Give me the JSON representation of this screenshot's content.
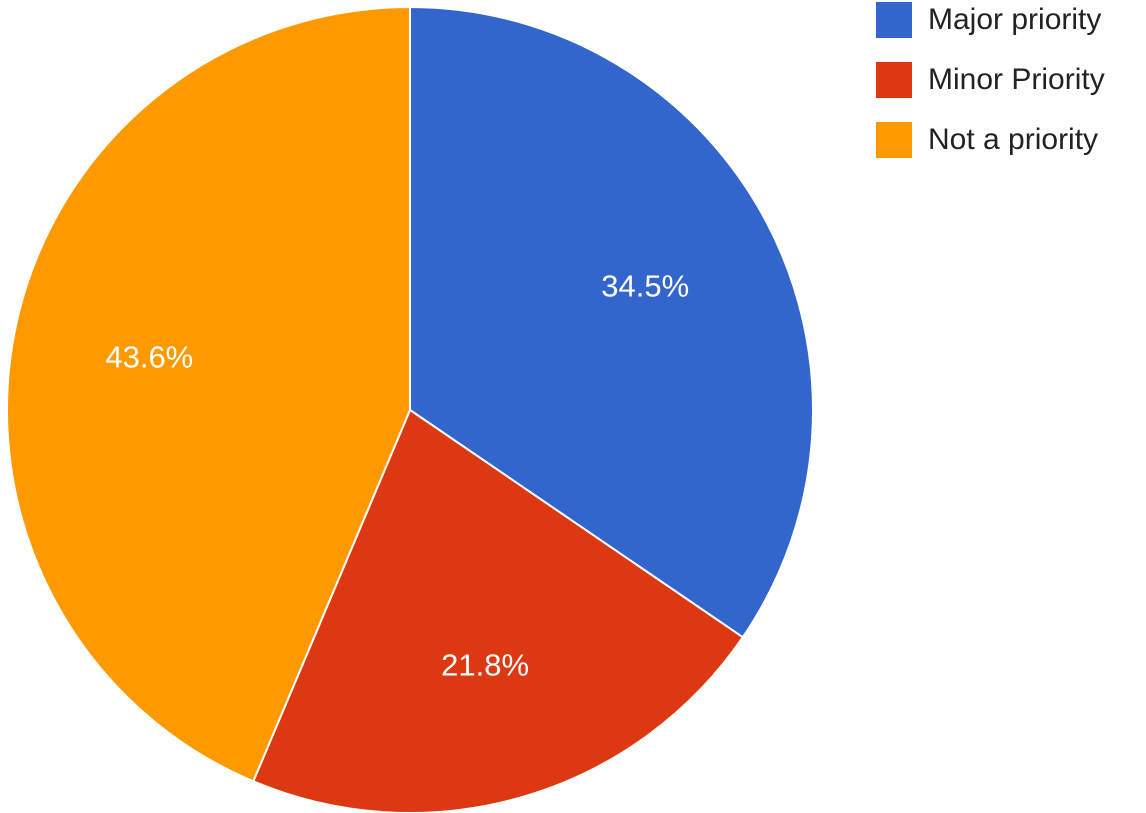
{
  "chart_data": {
    "type": "pie",
    "title": "",
    "categories": [
      "Major priority",
      "Minor Priority",
      "Not a priority"
    ],
    "values": [
      34.5,
      21.8,
      43.6
    ],
    "labels": [
      "34.5%",
      "21.8%",
      "43.6%"
    ],
    "colors": [
      "#3366cc",
      "#dc3912",
      "#ff9900"
    ],
    "legend_position": "top-right",
    "start_angle": "12 o'clock",
    "direction": "clockwise"
  },
  "legend": {
    "items": [
      {
        "label": "Major priority",
        "color": "#3366cc"
      },
      {
        "label": "Minor Priority",
        "color": "#dc3912"
      },
      {
        "label": "Not a priority",
        "color": "#ff9900"
      }
    ]
  }
}
